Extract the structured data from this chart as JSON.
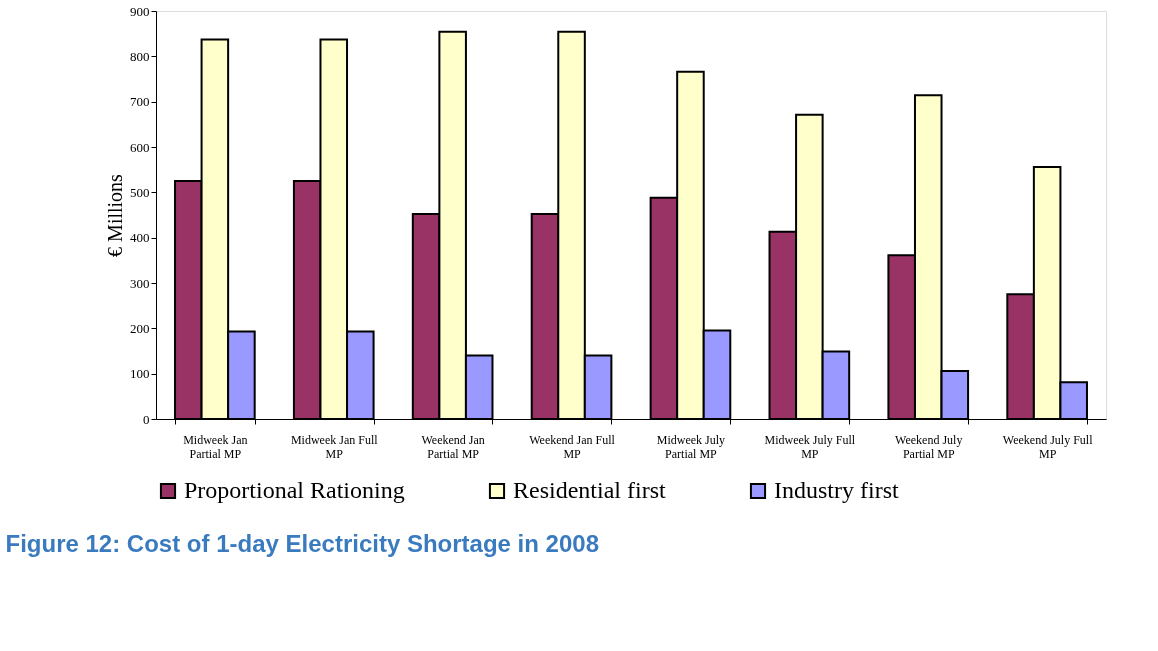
{
  "chart_data": {
    "type": "bar",
    "title": "Figure 12: Cost of 1-day Electricity Shortage in 2008",
    "ylabel": "€ Millions",
    "categories": [
      "Midweek Jan Partial MP",
      "Midweek Jan Full MP",
      "Weekend Jan Partial MP",
      "Weekend Jan Full MP",
      "Midweek July Partial MP",
      "Midweek July Full MP",
      "Weekend July Partial MP",
      "Weekend July Full MP"
    ],
    "series": [
      {
        "name": "Proportional Rationing",
        "color": "#993366",
        "values": [
          525,
          525,
          452,
          452,
          488,
          413,
          361,
          275
        ]
      },
      {
        "name": "Residential first",
        "color": "#ffffcc",
        "values": [
          837,
          837,
          854,
          854,
          766,
          671,
          714,
          556
        ]
      },
      {
        "name": "Industry first",
        "color": "#9999ff",
        "values": [
          193,
          193,
          140,
          140,
          195,
          149,
          106,
          81
        ]
      }
    ],
    "ylim": [
      0,
      900
    ],
    "yticks": [
      0,
      100,
      200,
      300,
      400,
      500,
      600,
      700,
      800,
      900
    ],
    "grid": false,
    "legend": "bottom"
  }
}
